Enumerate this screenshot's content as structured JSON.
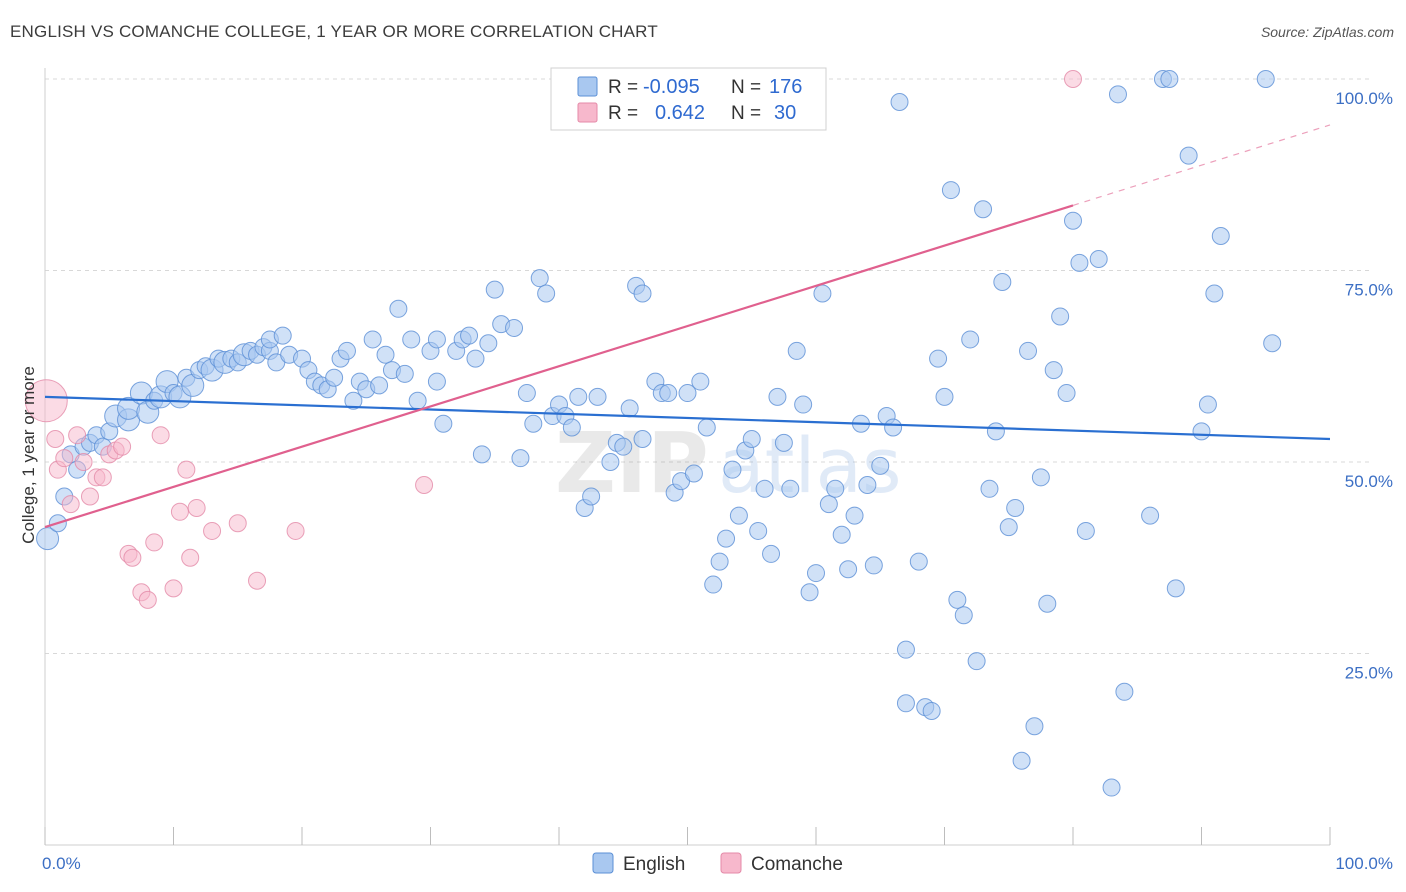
{
  "header": {
    "title": "ENGLISH VS COMANCHE COLLEGE, 1 YEAR OR MORE CORRELATION CHART",
    "source": "Source: ZipAtlas.com"
  },
  "watermark": {
    "part1": "ZIP",
    "part2": "atlas"
  },
  "legend_stats": [
    {
      "series": "English",
      "r_label": "R =",
      "r_value": "-0.095",
      "n_label": "N =",
      "n_value": "176",
      "color": "#a9c8f0"
    },
    {
      "series": "Comanche",
      "r_label": "R =",
      "r_value": "0.642",
      "n_label": "N =",
      "n_value": "30",
      "color": "#f7b8cc"
    }
  ],
  "bottom_legend": [
    {
      "label": "English",
      "color": "#a9c8f0"
    },
    {
      "label": "Comanche",
      "color": "#f7b8cc"
    }
  ],
  "colors": {
    "english_fill": "#a9c8f0",
    "english_stroke": "#5b8fd6",
    "english_line": "#2a6fd1",
    "comanche_fill": "#f7b8cc",
    "comanche_stroke": "#e48aa8",
    "comanche_line": "#e0608e",
    "grid": "#d8d8d8",
    "tick_text": "#3c6fc4"
  },
  "chart_data": {
    "type": "scatter",
    "xlabel": "",
    "ylabel": "College, 1 year or more",
    "xlim": [
      0,
      100
    ],
    "ylim": [
      0,
      100
    ],
    "x_tick_labels": [
      "0.0%",
      "100.0%"
    ],
    "y_tick_labels": [
      "25.0%",
      "50.0%",
      "75.0%",
      "100.0%"
    ],
    "y_ticks": [
      25,
      50,
      75,
      100
    ],
    "grid": true,
    "legend_position": "top-center",
    "series": [
      {
        "name": "English",
        "trend": {
          "x0": 0,
          "y0": 58.5,
          "x1": 100,
          "y1": 53.0
        },
        "points": [
          [
            0.2,
            40,
            2
          ],
          [
            1,
            42,
            1
          ],
          [
            1.5,
            45.5,
            1
          ],
          [
            2,
            51,
            1
          ],
          [
            2.5,
            49,
            1
          ],
          [
            3,
            52,
            1
          ],
          [
            3.5,
            52.5,
            1
          ],
          [
            4,
            53.5,
            1
          ],
          [
            4.5,
            52,
            1
          ],
          [
            5,
            54,
            1
          ],
          [
            5.5,
            56,
            2
          ],
          [
            6.5,
            55.5,
            2
          ],
          [
            6.5,
            57,
            2
          ],
          [
            7.5,
            59,
            2
          ],
          [
            8,
            56.5,
            2
          ],
          [
            8.5,
            58,
            1
          ],
          [
            9,
            58.5,
            2
          ],
          [
            9.5,
            60.5,
            2
          ],
          [
            10,
            59,
            1
          ],
          [
            10.5,
            58.5,
            2
          ],
          [
            11,
            61,
            1
          ],
          [
            11.5,
            60,
            2
          ],
          [
            12,
            62,
            1
          ],
          [
            12.5,
            62.5,
            1
          ],
          [
            13,
            62,
            2
          ],
          [
            13.5,
            63.5,
            1
          ],
          [
            14,
            63,
            2
          ],
          [
            14.5,
            63.5,
            1
          ],
          [
            15,
            63,
            1
          ],
          [
            15.5,
            64,
            2
          ],
          [
            16,
            64.5,
            1
          ],
          [
            16.5,
            64,
            1
          ],
          [
            17,
            65,
            1
          ],
          [
            17.5,
            64.5,
            1
          ],
          [
            17.5,
            66,
            1
          ],
          [
            18,
            63,
            1
          ],
          [
            18.5,
            66.5,
            1
          ],
          [
            19,
            64,
            1
          ],
          [
            20,
            63.5,
            1
          ],
          [
            20.5,
            62,
            1
          ],
          [
            21,
            60.5,
            1
          ],
          [
            21.5,
            60,
            1
          ],
          [
            22,
            59.5,
            1
          ],
          [
            22.5,
            61,
            1
          ],
          [
            23,
            63.5,
            1
          ],
          [
            23.5,
            64.5,
            1
          ],
          [
            24,
            58,
            1
          ],
          [
            24.5,
            60.5,
            1
          ],
          [
            25,
            59.5,
            1
          ],
          [
            25.5,
            66,
            1
          ],
          [
            26,
            60,
            1
          ],
          [
            26.5,
            64,
            1
          ],
          [
            27,
            62,
            1
          ],
          [
            27.5,
            70,
            1
          ],
          [
            28,
            61.5,
            1
          ],
          [
            28.5,
            66,
            1
          ],
          [
            29,
            58,
            1
          ],
          [
            30,
            64.5,
            1
          ],
          [
            30.5,
            66,
            1
          ],
          [
            30.5,
            60.5,
            1
          ],
          [
            31,
            55,
            1
          ],
          [
            32,
            64.5,
            1
          ],
          [
            32.5,
            66,
            1
          ],
          [
            33,
            66.5,
            1
          ],
          [
            33.5,
            63.5,
            1
          ],
          [
            34,
            51,
            1
          ],
          [
            34.5,
            65.5,
            1
          ],
          [
            35,
            72.5,
            1
          ],
          [
            35.5,
            68,
            1
          ],
          [
            36.5,
            67.5,
            1
          ],
          [
            37,
            50.5,
            1
          ],
          [
            37.5,
            59,
            1
          ],
          [
            38,
            55,
            1
          ],
          [
            38.5,
            74,
            1
          ],
          [
            39,
            72,
            1
          ],
          [
            39.5,
            56,
            1
          ],
          [
            40,
            57.5,
            1
          ],
          [
            40.5,
            56,
            1
          ],
          [
            41,
            54.5,
            1
          ],
          [
            41.5,
            58.5,
            1
          ],
          [
            42,
            44,
            1
          ],
          [
            42.5,
            45.5,
            1
          ],
          [
            43,
            58.5,
            1
          ],
          [
            44,
            50,
            1
          ],
          [
            44.5,
            52.5,
            1
          ],
          [
            45,
            52,
            1
          ],
          [
            45.5,
            57,
            1
          ],
          [
            46,
            73,
            1
          ],
          [
            46.5,
            72,
            1
          ],
          [
            46.5,
            53,
            1
          ],
          [
            47.5,
            60.5,
            1
          ],
          [
            48,
            59,
            1
          ],
          [
            48.5,
            59,
            1
          ],
          [
            49,
            46,
            1
          ],
          [
            49.5,
            47.5,
            1
          ],
          [
            50,
            59,
            1
          ],
          [
            50.5,
            48.5,
            1
          ],
          [
            51,
            60.5,
            1
          ],
          [
            51.5,
            54.5,
            1
          ],
          [
            52,
            34,
            1
          ],
          [
            52.5,
            37,
            1
          ],
          [
            53,
            40,
            1
          ],
          [
            53.5,
            49,
            1
          ],
          [
            54,
            43,
            1
          ],
          [
            54.5,
            51.5,
            1
          ],
          [
            55,
            53,
            1
          ],
          [
            55.5,
            41,
            1
          ],
          [
            56,
            46.5,
            1
          ],
          [
            56.5,
            38,
            1
          ],
          [
            57,
            58.5,
            1
          ],
          [
            57.5,
            52.5,
            1
          ],
          [
            58,
            46.5,
            1
          ],
          [
            58.5,
            64.5,
            1
          ],
          [
            59,
            57.5,
            1
          ],
          [
            59.5,
            33,
            1
          ],
          [
            60,
            35.5,
            1
          ],
          [
            60.5,
            72,
            1
          ],
          [
            61,
            44.5,
            1
          ],
          [
            61.5,
            46.5,
            1
          ],
          [
            62,
            40.5,
            1
          ],
          [
            62.5,
            36,
            1
          ],
          [
            63,
            43,
            1
          ],
          [
            63.5,
            55,
            1
          ],
          [
            64,
            47,
            1
          ],
          [
            64.5,
            36.5,
            1
          ],
          [
            65,
            49.5,
            1
          ],
          [
            65.5,
            56,
            1
          ],
          [
            66,
            54.5,
            1
          ],
          [
            66.5,
            97,
            1
          ],
          [
            67,
            25.5,
            1
          ],
          [
            67,
            18.5,
            1
          ],
          [
            68,
            37,
            1
          ],
          [
            68.5,
            18,
            1
          ],
          [
            69,
            17.5,
            1
          ],
          [
            69.5,
            63.5,
            1
          ],
          [
            70,
            58.5,
            1
          ],
          [
            70.5,
            85.5,
            1
          ],
          [
            71,
            32,
            1
          ],
          [
            71.5,
            30,
            1
          ],
          [
            72,
            66,
            1
          ],
          [
            72.5,
            24,
            1
          ],
          [
            73,
            83,
            1
          ],
          [
            73.5,
            46.5,
            1
          ],
          [
            74,
            54,
            1
          ],
          [
            74.5,
            73.5,
            1
          ],
          [
            75,
            41.5,
            1
          ],
          [
            75.5,
            44,
            1
          ],
          [
            76,
            11,
            1
          ],
          [
            76.5,
            64.5,
            1
          ],
          [
            77,
            15.5,
            1
          ],
          [
            77.5,
            48,
            1
          ],
          [
            78,
            31.5,
            1
          ],
          [
            78.5,
            62,
            1
          ],
          [
            79,
            69,
            1
          ],
          [
            79.5,
            59,
            1
          ],
          [
            80,
            81.5,
            1
          ],
          [
            80.5,
            76,
            1
          ],
          [
            81,
            41,
            1
          ],
          [
            82,
            76.5,
            1
          ],
          [
            83,
            7.5,
            1
          ],
          [
            83.5,
            98,
            1
          ],
          [
            84,
            20,
            1
          ],
          [
            86,
            43,
            1
          ],
          [
            87,
            100,
            1
          ],
          [
            87.5,
            100,
            1
          ],
          [
            88,
            33.5,
            1
          ],
          [
            89,
            90,
            1
          ],
          [
            90,
            54,
            1
          ],
          [
            90.5,
            57.5,
            1
          ],
          [
            91,
            72,
            1
          ],
          [
            91.5,
            79.5,
            1
          ],
          [
            95,
            100,
            1
          ],
          [
            95.5,
            65.5,
            1
          ]
        ]
      },
      {
        "name": "Comanche",
        "trend": {
          "x0": 0,
          "y0": 41.5,
          "x1": 80,
          "y1": 83.5,
          "dash_x1": 100,
          "dash_y1": 94
        },
        "points": [
          [
            0.1,
            58,
            3
          ],
          [
            0.8,
            53,
            1
          ],
          [
            1,
            49,
            1
          ],
          [
            1.5,
            50.5,
            1
          ],
          [
            2,
            44.5,
            1
          ],
          [
            2.5,
            53.5,
            1
          ],
          [
            3,
            50,
            1
          ],
          [
            3.5,
            45.5,
            1
          ],
          [
            4,
            48,
            1
          ],
          [
            4.5,
            48,
            1
          ],
          [
            5,
            51,
            1
          ],
          [
            5.5,
            51.5,
            1
          ],
          [
            6,
            52,
            1
          ],
          [
            6.5,
            38,
            1
          ],
          [
            6.8,
            37.5,
            1
          ],
          [
            7.5,
            33,
            1
          ],
          [
            8,
            32,
            1
          ],
          [
            8.5,
            39.5,
            1
          ],
          [
            9,
            53.5,
            1
          ],
          [
            10,
            33.5,
            1
          ],
          [
            10.5,
            43.5,
            1
          ],
          [
            11,
            49,
            1
          ],
          [
            11.3,
            37.5,
            1
          ],
          [
            11.8,
            44,
            1
          ],
          [
            13,
            41,
            1
          ],
          [
            15,
            42,
            1
          ],
          [
            16.5,
            34.5,
            1
          ],
          [
            19.5,
            41,
            1
          ],
          [
            29.5,
            47,
            1
          ],
          [
            80,
            100,
            1
          ]
        ]
      }
    ]
  }
}
